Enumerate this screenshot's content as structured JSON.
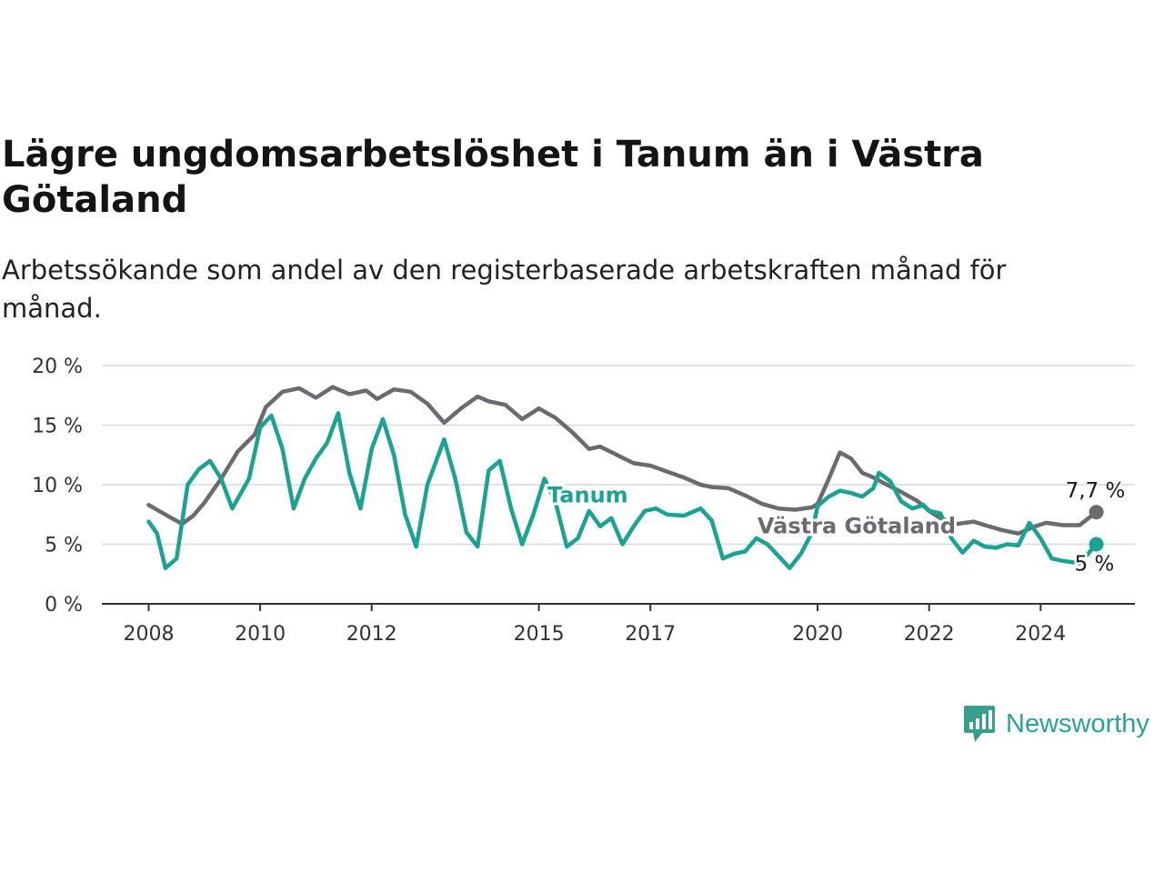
{
  "title": "Lägre ungdomsarbetslöshet i Tanum än i Västra Götaland",
  "subtitle": "Arbetssökande som andel av den registerbaserade arbetskraften månad för månad.",
  "brand": {
    "name": "Newsworthy",
    "icon": "newsworthy-logo-icon",
    "color": "#3a9e8f"
  },
  "chart_data": {
    "type": "line",
    "title": "Lägre ungdomsarbetslöshet i Tanum än i Västra Götaland",
    "xlabel": "",
    "ylabel": "",
    "xlim": [
      2008,
      2025.5
    ],
    "ylim": [
      0,
      20
    ],
    "y_ticks": [
      0,
      5,
      10,
      15,
      20
    ],
    "y_tick_labels": [
      "0 %",
      "5 %",
      "10 %",
      "15 %",
      "20 %"
    ],
    "x_ticks": [
      2008,
      2010,
      2012,
      2015,
      2017,
      2020,
      2022,
      2024
    ],
    "x_tick_labels": [
      "2008",
      "2010",
      "2012",
      "2015",
      "2017",
      "2020",
      "2022",
      "2024"
    ],
    "grid": "horizontal",
    "series": [
      {
        "name": "Västra Götaland",
        "color": "#6b6a70",
        "end_label": "7,7 %",
        "points": [
          [
            2008.0,
            8.3
          ],
          [
            2008.3,
            7.5
          ],
          [
            2008.6,
            6.7
          ],
          [
            2008.8,
            7.4
          ],
          [
            2009.0,
            8.5
          ],
          [
            2009.3,
            10.5
          ],
          [
            2009.6,
            12.8
          ],
          [
            2009.9,
            14.2
          ],
          [
            2010.1,
            16.5
          ],
          [
            2010.4,
            17.8
          ],
          [
            2010.7,
            18.1
          ],
          [
            2011.0,
            17.3
          ],
          [
            2011.3,
            18.2
          ],
          [
            2011.6,
            17.6
          ],
          [
            2011.9,
            17.9
          ],
          [
            2012.1,
            17.2
          ],
          [
            2012.4,
            18.0
          ],
          [
            2012.7,
            17.8
          ],
          [
            2013.0,
            16.8
          ],
          [
            2013.3,
            15.2
          ],
          [
            2013.6,
            16.4
          ],
          [
            2013.9,
            17.4
          ],
          [
            2014.1,
            17.0
          ],
          [
            2014.4,
            16.7
          ],
          [
            2014.7,
            15.5
          ],
          [
            2015.0,
            16.4
          ],
          [
            2015.3,
            15.6
          ],
          [
            2015.6,
            14.4
          ],
          [
            2015.9,
            13.0
          ],
          [
            2016.1,
            13.2
          ],
          [
            2016.4,
            12.5
          ],
          [
            2016.7,
            11.8
          ],
          [
            2017.0,
            11.6
          ],
          [
            2017.3,
            11.1
          ],
          [
            2017.6,
            10.6
          ],
          [
            2017.9,
            10.0
          ],
          [
            2018.1,
            9.8
          ],
          [
            2018.4,
            9.7
          ],
          [
            2018.7,
            9.1
          ],
          [
            2019.0,
            8.4
          ],
          [
            2019.3,
            8.0
          ],
          [
            2019.6,
            7.9
          ],
          [
            2019.9,
            8.1
          ],
          [
            2020.0,
            8.4
          ],
          [
            2020.2,
            10.5
          ],
          [
            2020.4,
            12.7
          ],
          [
            2020.6,
            12.2
          ],
          [
            2020.8,
            11.0
          ],
          [
            2021.0,
            10.6
          ],
          [
            2021.2,
            10.1
          ],
          [
            2021.5,
            9.4
          ],
          [
            2021.8,
            8.6
          ],
          [
            2022.0,
            7.8
          ],
          [
            2022.2,
            7.2
          ],
          [
            2022.5,
            6.7
          ],
          [
            2022.8,
            6.9
          ],
          [
            2023.0,
            6.6
          ],
          [
            2023.3,
            6.2
          ],
          [
            2023.6,
            5.9
          ],
          [
            2023.9,
            6.5
          ],
          [
            2024.1,
            6.8
          ],
          [
            2024.4,
            6.6
          ],
          [
            2024.7,
            6.6
          ],
          [
            2025.0,
            7.7
          ]
        ]
      },
      {
        "name": "Tanum",
        "color": "#1aa392",
        "end_label": "5 %",
        "points": [
          [
            2008.0,
            6.9
          ],
          [
            2008.15,
            5.9
          ],
          [
            2008.3,
            3.0
          ],
          [
            2008.5,
            3.8
          ],
          [
            2008.7,
            10.0
          ],
          [
            2008.9,
            11.3
          ],
          [
            2009.1,
            12.0
          ],
          [
            2009.3,
            10.5
          ],
          [
            2009.5,
            8.0
          ],
          [
            2009.8,
            10.5
          ],
          [
            2010.0,
            14.8
          ],
          [
            2010.2,
            15.8
          ],
          [
            2010.4,
            13.0
          ],
          [
            2010.6,
            8.0
          ],
          [
            2010.8,
            10.5
          ],
          [
            2011.0,
            12.2
          ],
          [
            2011.2,
            13.5
          ],
          [
            2011.4,
            16.0
          ],
          [
            2011.6,
            11.0
          ],
          [
            2011.8,
            8.0
          ],
          [
            2012.0,
            13.0
          ],
          [
            2012.2,
            15.5
          ],
          [
            2012.4,
            12.5
          ],
          [
            2012.6,
            7.5
          ],
          [
            2012.8,
            4.8
          ],
          [
            2013.0,
            10.0
          ],
          [
            2013.3,
            13.8
          ],
          [
            2013.5,
            10.5
          ],
          [
            2013.7,
            6.0
          ],
          [
            2013.9,
            4.8
          ],
          [
            2014.1,
            11.2
          ],
          [
            2014.3,
            12.0
          ],
          [
            2014.5,
            8.0
          ],
          [
            2014.7,
            5.0
          ],
          [
            2014.9,
            7.5
          ],
          [
            2015.1,
            10.5
          ],
          [
            2015.3,
            8.5
          ],
          [
            2015.5,
            4.8
          ],
          [
            2015.7,
            5.5
          ],
          [
            2015.9,
            7.8
          ],
          [
            2016.1,
            6.5
          ],
          [
            2016.3,
            7.2
          ],
          [
            2016.5,
            5.0
          ],
          [
            2016.7,
            6.5
          ],
          [
            2016.9,
            7.8
          ],
          [
            2017.1,
            8.0
          ],
          [
            2017.3,
            7.5
          ],
          [
            2017.6,
            7.4
          ],
          [
            2017.9,
            8.0
          ],
          [
            2018.1,
            7.0
          ],
          [
            2018.3,
            3.8
          ],
          [
            2018.5,
            4.2
          ],
          [
            2018.7,
            4.4
          ],
          [
            2018.9,
            5.5
          ],
          [
            2019.1,
            5.0
          ],
          [
            2019.3,
            4.0
          ],
          [
            2019.5,
            3.0
          ],
          [
            2019.7,
            4.2
          ],
          [
            2019.9,
            6.0
          ],
          [
            2020.0,
            8.2
          ],
          [
            2020.2,
            9.0
          ],
          [
            2020.4,
            9.5
          ],
          [
            2020.6,
            9.3
          ],
          [
            2020.8,
            9.0
          ],
          [
            2021.0,
            9.7
          ],
          [
            2021.1,
            11.0
          ],
          [
            2021.3,
            10.3
          ],
          [
            2021.5,
            8.6
          ],
          [
            2021.7,
            8.0
          ],
          [
            2021.9,
            8.3
          ],
          [
            2022.0,
            7.8
          ],
          [
            2022.2,
            7.6
          ],
          [
            2022.4,
            5.5
          ],
          [
            2022.6,
            4.3
          ],
          [
            2022.8,
            5.3
          ],
          [
            2023.0,
            4.8
          ],
          [
            2023.2,
            4.7
          ],
          [
            2023.4,
            5.0
          ],
          [
            2023.6,
            4.9
          ],
          [
            2023.8,
            6.8
          ],
          [
            2024.0,
            5.5
          ],
          [
            2024.2,
            3.8
          ],
          [
            2024.4,
            3.6
          ],
          [
            2024.7,
            3.4
          ],
          [
            2025.0,
            5.0
          ]
        ]
      }
    ]
  }
}
